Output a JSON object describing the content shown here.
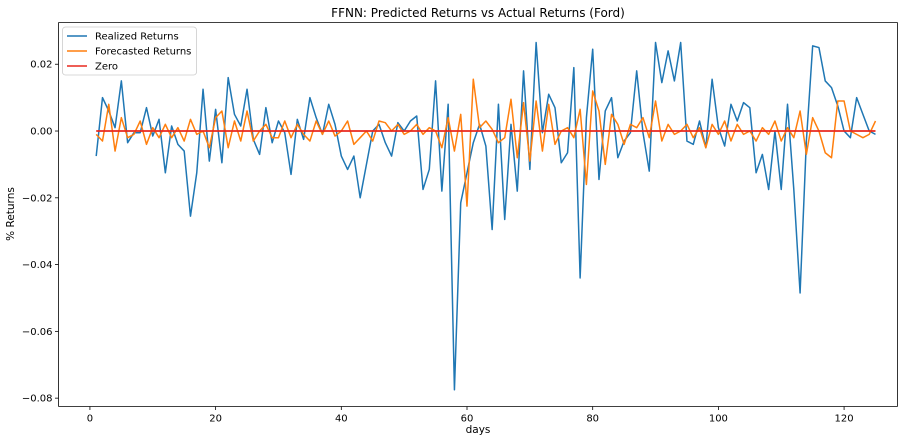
{
  "chart_data": {
    "type": "line",
    "title": "FFNN: Predicted Returns vs Actual Returns (Ford)",
    "xlabel": "days",
    "ylabel": "% Returns",
    "xlim": [
      -5,
      128.5
    ],
    "ylim": [
      -0.0825,
      0.0325
    ],
    "x_ticks": [
      0,
      20,
      40,
      60,
      80,
      100,
      120
    ],
    "x_tick_labels": [
      "0",
      "20",
      "40",
      "60",
      "80",
      "100",
      "120"
    ],
    "y_ticks": [
      0.02,
      0.0,
      -0.02,
      -0.04,
      -0.06,
      -0.08
    ],
    "y_tick_labels": [
      "0.02",
      "0.00",
      "−0.02",
      "−0.04",
      "−0.06",
      "−0.08"
    ],
    "grid": false,
    "legend_position": "top-left",
    "series": [
      {
        "name": "Realized Returns",
        "color": "#1f77b4",
        "x_start": 1,
        "values": [
          -0.0075,
          0.01,
          0.006,
          0.001,
          0.015,
          -0.0035,
          -0.0005,
          -0.0005,
          0.007,
          -0.0015,
          0.0035,
          -0.0125,
          0.0015,
          -0.004,
          -0.006,
          -0.0255,
          -0.0125,
          0.0125,
          -0.009,
          0.0065,
          -0.0095,
          0.016,
          0.005,
          0.0015,
          0.0125,
          -0.0025,
          -0.007,
          0.007,
          -0.0035,
          0.003,
          -0.0005,
          -0.013,
          0.0035,
          -0.0025,
          0.01,
          0.004,
          -0.001,
          0.008,
          0.002,
          -0.0075,
          -0.0115,
          -0.0075,
          -0.02,
          -0.01,
          0.0,
          0.002,
          -0.0035,
          -0.0075,
          0.0025,
          0.0,
          0.003,
          0.0045,
          -0.0175,
          -0.0115,
          0.015,
          -0.018,
          0.008,
          -0.0775,
          -0.0215,
          -0.0125,
          -0.0035,
          0.002,
          -0.0045,
          -0.0295,
          0.008,
          -0.0265,
          0.002,
          -0.018,
          0.018,
          -0.0115,
          0.0265,
          -0.0005,
          0.011,
          0.007,
          -0.0095,
          -0.0065,
          0.019,
          -0.044,
          0.004,
          0.0245,
          -0.0145,
          0.006,
          0.01,
          -0.008,
          -0.003,
          -0.0005,
          0.018,
          -0.0005,
          -0.012,
          0.0265,
          0.0145,
          0.024,
          0.015,
          0.0265,
          -0.003,
          -0.004,
          0.003,
          -0.005,
          0.0155,
          0.001,
          -0.0045,
          0.008,
          0.003,
          0.0085,
          0.007,
          -0.0125,
          -0.007,
          -0.0175,
          0.0,
          -0.0175,
          0.008,
          -0.0175,
          -0.0485,
          -0.003,
          0.0255,
          0.025,
          0.015,
          0.013,
          0.0075,
          0.0,
          -0.002,
          0.01,
          0.005,
          0.0,
          -0.001
        ]
      },
      {
        "name": "Forecasted Returns",
        "color": "#ff7f0e",
        "x_start": 1,
        "values": [
          -0.001,
          -0.003,
          0.008,
          -0.006,
          0.004,
          -0.002,
          -0.001,
          0.003,
          -0.004,
          0.001,
          -0.002,
          0.002,
          -0.002,
          0.001,
          -0.003,
          0.0035,
          -0.001,
          0.0,
          -0.005,
          0.004,
          0.006,
          -0.005,
          0.003,
          -0.003,
          0.006,
          -0.003,
          0.0,
          0.002,
          -0.002,
          -0.002,
          0.003,
          -0.002,
          0.002,
          -0.001,
          -0.003,
          0.003,
          -0.001,
          0.003,
          -0.0015,
          0.0,
          0.003,
          -0.004,
          -0.002,
          0.0,
          -0.003,
          0.003,
          0.0025,
          0.0,
          0.002,
          -0.001,
          0.0,
          0.002,
          -0.001,
          0.001,
          0.0,
          -0.005,
          0.004,
          -0.006,
          0.005,
          -0.0225,
          0.0155,
          0.001,
          0.003,
          0.0005,
          -0.0035,
          -0.002,
          0.0095,
          -0.008,
          0.0085,
          -0.009,
          0.009,
          -0.006,
          0.008,
          -0.004,
          0.0,
          0.001,
          -0.002,
          0.0065,
          -0.016,
          0.012,
          0.006,
          -0.01,
          0.005,
          0.002,
          -0.004,
          0.002,
          0.001,
          0.004,
          -0.002,
          0.009,
          -0.003,
          0.002,
          -0.001,
          0.0,
          0.002,
          -0.002,
          0.001,
          -0.005,
          0.002,
          -0.001,
          0.003,
          -0.003,
          0.002,
          -0.001,
          0.0,
          -0.003,
          0.001,
          -0.001,
          0.003,
          -0.003,
          0.001,
          -0.002,
          0.006,
          -0.007,
          0.004,
          0.0,
          -0.0065,
          -0.008,
          0.009,
          0.009,
          0.0,
          -0.001,
          -0.002,
          -0.001,
          0.003
        ]
      },
      {
        "name": "Zero",
        "color": "#e8281f",
        "x_start": 1,
        "values": "zero-line"
      }
    ]
  }
}
